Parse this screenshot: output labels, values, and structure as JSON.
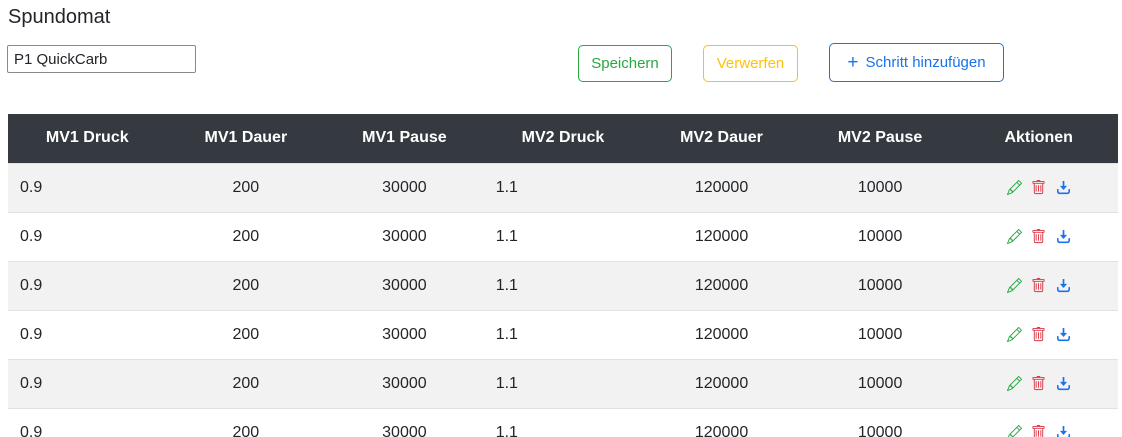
{
  "page": {
    "title": "Spundomat"
  },
  "profile_input": {
    "value": "P1 QuickCarb"
  },
  "toolbar": {
    "save_label": "Speichern",
    "discard_label": "Verwerfen",
    "add_step_plus": "+",
    "add_step_label": "Schritt hinzufügen"
  },
  "colors": {
    "success_green": "#28a745",
    "warning_yellow": "#ffc107",
    "primary_blue": "#1a73e8",
    "danger_red": "#dc3545",
    "table_header_bg": "#343a40",
    "stripe_gray": "#f2f2f2",
    "row_border": "#dee2e6",
    "text": "#212529"
  },
  "table": {
    "columns": [
      "MV1 Druck",
      "MV1 Dauer",
      "MV1 Pause",
      "MV2 Druck",
      "MV2 Dauer",
      "MV2 Pause",
      "Aktionen"
    ],
    "rows": [
      [
        "0.9",
        "200",
        "30000",
        "1.1",
        "120000",
        "10000"
      ],
      [
        "0.9",
        "200",
        "30000",
        "1.1",
        "120000",
        "10000"
      ],
      [
        "0.9",
        "200",
        "30000",
        "1.1",
        "120000",
        "10000"
      ],
      [
        "0.9",
        "200",
        "30000",
        "1.1",
        "120000",
        "10000"
      ],
      [
        "0.9",
        "200",
        "30000",
        "1.1",
        "120000",
        "10000"
      ],
      [
        "0.9",
        "200",
        "30000",
        "1.1",
        "120000",
        "10000"
      ]
    ],
    "actions": [
      {
        "name": "edit",
        "icon": "pencil-icon"
      },
      {
        "name": "delete",
        "icon": "trash-icon"
      },
      {
        "name": "download",
        "icon": "download-icon"
      }
    ]
  }
}
